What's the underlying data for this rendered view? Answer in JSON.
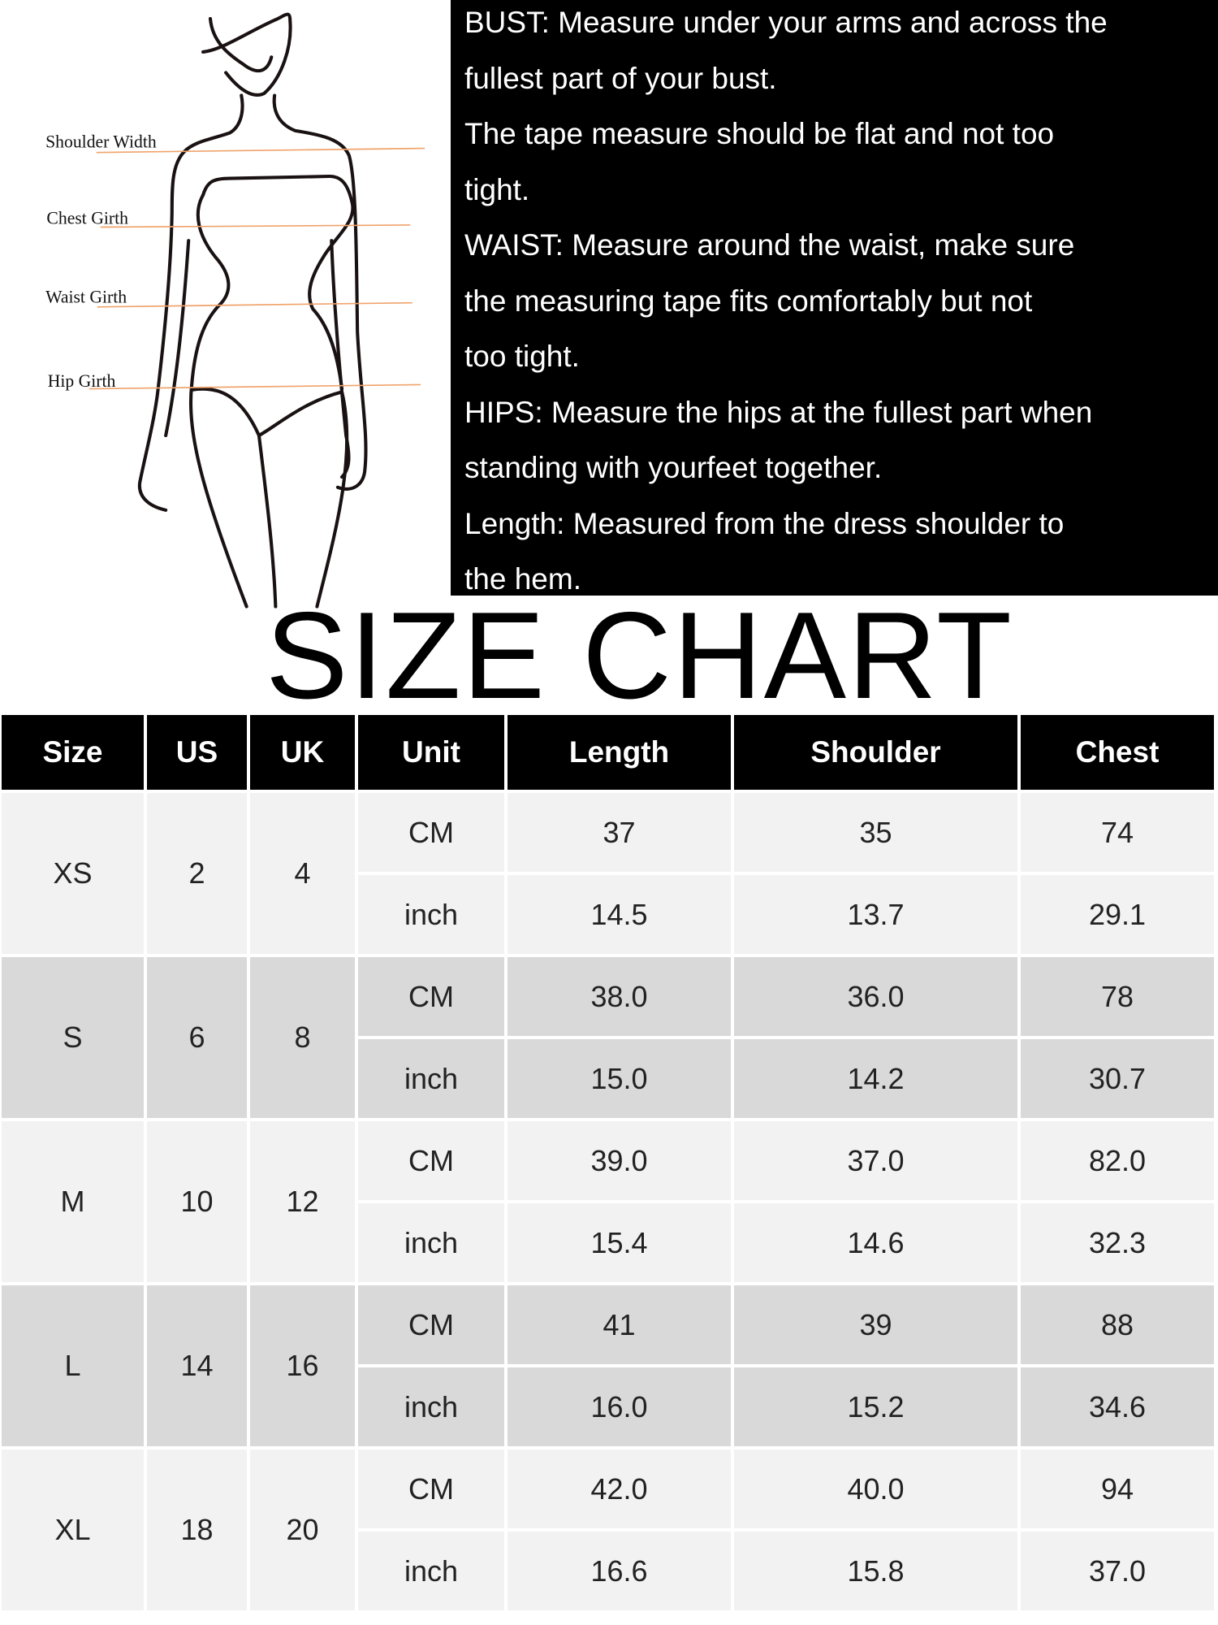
{
  "figure": {
    "labels": [
      "Shoulder Width",
      "Chest Girth",
      "Waist Girth",
      "Hip Girth"
    ],
    "measure_line_color": "#f0a36b"
  },
  "guide": {
    "lines": [
      "BUST: Measure under your arms and across the",
      "fullest part of your bust.",
      "The tape measure should be flat and not too",
      "tight.",
      "WAIST: Measure around the waist, make sure",
      "the measuring tape fits comfortably but not",
      "too tight.",
      "HIPS: Measure the hips at the fullest part when",
      "standing with yourfeet together.",
      "Length: Measured from the dress shoulder to",
      "the hem."
    ]
  },
  "title": "SIZE CHART",
  "table": {
    "headers": [
      "Size",
      "US",
      "UK",
      "Unit",
      "Length",
      "Shoulder",
      "Chest"
    ],
    "rows": [
      {
        "size": "XS",
        "us": "2",
        "uk": "4",
        "cm": {
          "unit": "CM",
          "length": "37",
          "shoulder": "35",
          "chest": "74"
        },
        "inch": {
          "unit": "inch",
          "length": "14.5",
          "shoulder": "13.7",
          "chest": "29.1"
        }
      },
      {
        "size": "S",
        "us": "6",
        "uk": "8",
        "cm": {
          "unit": "CM",
          "length": "38.0",
          "shoulder": "36.0",
          "chest": "78"
        },
        "inch": {
          "unit": "inch",
          "length": "15.0",
          "shoulder": "14.2",
          "chest": "30.7"
        }
      },
      {
        "size": "M",
        "us": "10",
        "uk": "12",
        "cm": {
          "unit": "CM",
          "length": "39.0",
          "shoulder": "37.0",
          "chest": "82.0"
        },
        "inch": {
          "unit": "inch",
          "length": "15.4",
          "shoulder": "14.6",
          "chest": "32.3"
        }
      },
      {
        "size": "L",
        "us": "14",
        "uk": "16",
        "cm": {
          "unit": "CM",
          "length": "41",
          "shoulder": "39",
          "chest": "88"
        },
        "inch": {
          "unit": "inch",
          "length": "16.0",
          "shoulder": "15.2",
          "chest": "34.6"
        }
      },
      {
        "size": "XL",
        "us": "18",
        "uk": "20",
        "cm": {
          "unit": "CM",
          "length": "42.0",
          "shoulder": "40.0",
          "chest": "94"
        },
        "inch": {
          "unit": "inch",
          "length": "16.6",
          "shoulder": "15.8",
          "chest": "37.0"
        }
      }
    ]
  }
}
